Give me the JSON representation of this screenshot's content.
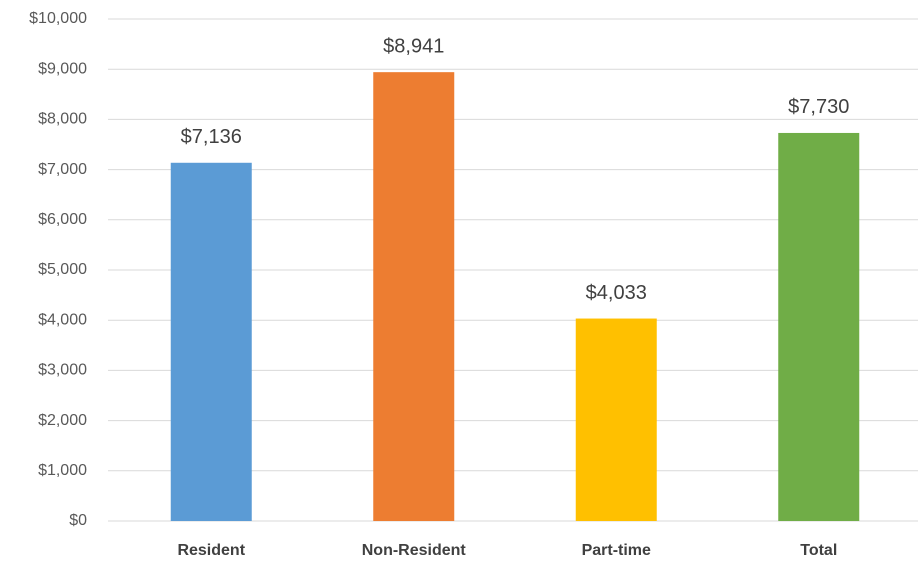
{
  "chart_data": {
    "type": "bar",
    "categories": [
      "Resident",
      "Non-Resident",
      "Part-time",
      "Total"
    ],
    "values": [
      7136,
      8941,
      4033,
      7730
    ],
    "value_labels": [
      "$7,136",
      "$8,941",
      "$4,033",
      "$7,730"
    ],
    "colors": [
      "#5b9bd5",
      "#ed7d31",
      "#ffc000",
      "#70ad47"
    ],
    "ylim": [
      0,
      10000
    ],
    "yticks": [
      {
        "value": 0,
        "label": "$0"
      },
      {
        "value": 1000,
        "label": "$1,000"
      },
      {
        "value": 2000,
        "label": "$2,000"
      },
      {
        "value": 3000,
        "label": "$3,000"
      },
      {
        "value": 4000,
        "label": "$4,000"
      },
      {
        "value": 5000,
        "label": "$5,000"
      },
      {
        "value": 6000,
        "label": "$6,000"
      },
      {
        "value": 7000,
        "label": "$7,000"
      },
      {
        "value": 8000,
        "label": "$8,000"
      },
      {
        "value": 9000,
        "label": "$9,000"
      },
      {
        "value": 10000,
        "label": "$10,000"
      }
    ],
    "grid": true
  }
}
